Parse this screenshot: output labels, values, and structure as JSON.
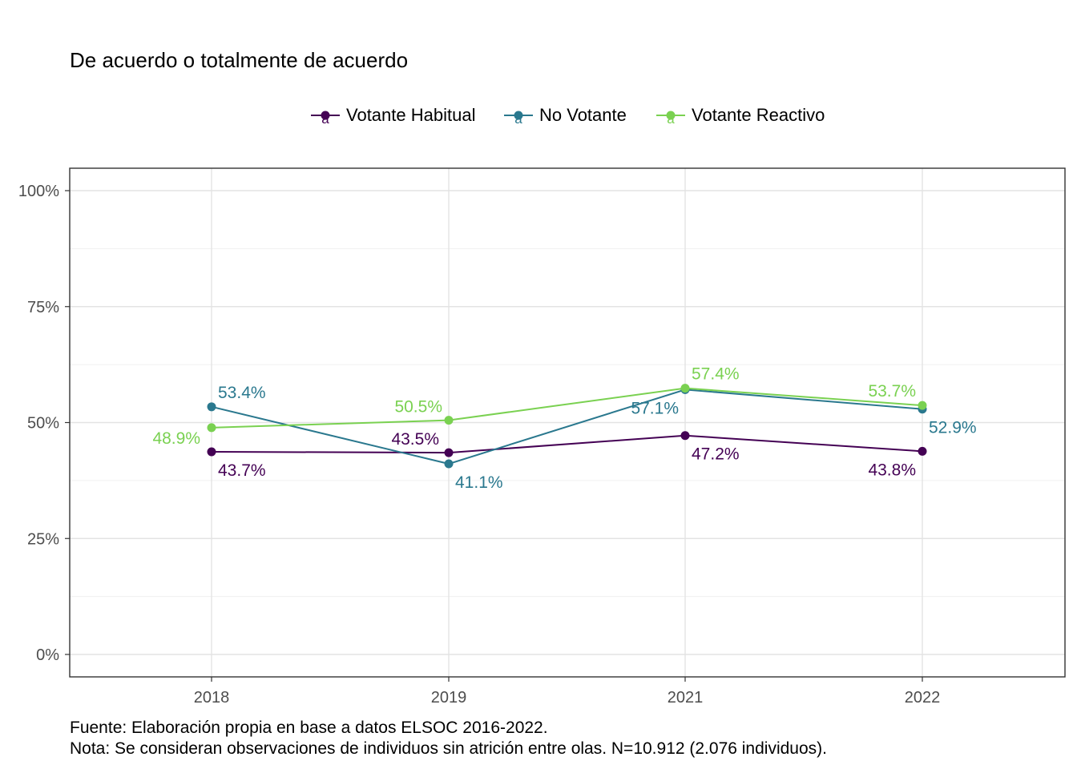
{
  "chart_data": {
    "type": "line",
    "title": "De acuerdo o totalmente de acuerdo",
    "categories": [
      "2018",
      "2019",
      "2021",
      "2022"
    ],
    "ylim": [
      0,
      1
    ],
    "yticks": [
      0,
      0.25,
      0.5,
      0.75,
      1
    ],
    "ytick_labels": [
      "0%",
      "25%",
      "50%",
      "75%",
      "100%"
    ],
    "grid": true,
    "legend_position": "top",
    "legend_key_glyph": "a",
    "series": [
      {
        "name": "Votante Habitual",
        "color": "#440154",
        "values": [
          0.437,
          0.435,
          0.472,
          0.438
        ],
        "labels": [
          "43.7%",
          "43.5%",
          "47.2%",
          "43.8%"
        ]
      },
      {
        "name": "No Votante",
        "color": "#2A788E",
        "values": [
          0.534,
          0.411,
          0.571,
          0.529
        ],
        "labels": [
          "53.4%",
          "41.1%",
          "57.1%",
          "52.9%"
        ]
      },
      {
        "name": "Votante Reactivo",
        "color": "#7AD151",
        "values": [
          0.489,
          0.505,
          0.574,
          0.537
        ],
        "labels": [
          "48.9%",
          "50.5%",
          "57.4%",
          "53.7%"
        ]
      }
    ]
  },
  "caption": {
    "source": "Fuente: Elaboración propia en base a datos ELSOC 2016-2022.",
    "note": "Nota: Se consideran observaciones de individuos sin atrición entre olas. N=10.912 (2.076 individuos)."
  }
}
